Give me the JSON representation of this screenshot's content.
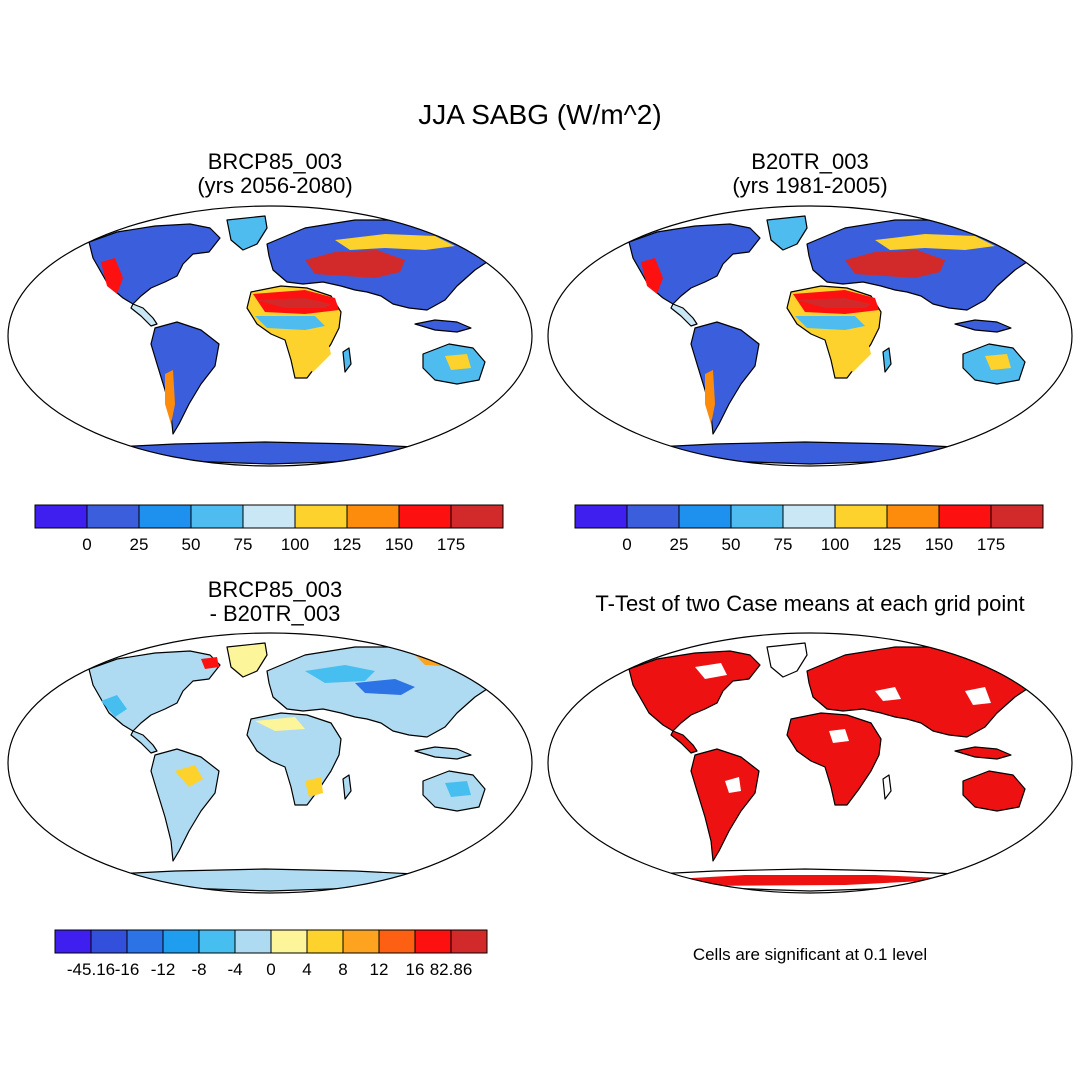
{
  "title": "JJA SABG (W/m^2)",
  "panels": [
    {
      "id": "p1",
      "title_line1": "BRCP85_003",
      "title_line2": "(yrs 2056-2080)",
      "scheme": "abs"
    },
    {
      "id": "p2",
      "title_line1": "B20TR_003",
      "title_line2": "(yrs 1981-2005)",
      "scheme": "abs"
    },
    {
      "id": "p3",
      "title_line1": "BRCP85_003",
      "title_line2": "- B20TR_003",
      "scheme": "diff"
    },
    {
      "id": "p4",
      "title_line1": "T-Test of two Case means at each grid point",
      "title_line2": "",
      "scheme": "sig"
    }
  ],
  "colorbars": {
    "absolute": {
      "colors": [
        "#3e1fef",
        "#3b5fdc",
        "#1e90ee",
        "#4fbcef",
        "#c9e7f5",
        "#fdd22c",
        "#fd8c0d",
        "#fd1010",
        "#d22a2a"
      ],
      "labels": [
        "0",
        "25",
        "50",
        "75",
        "100",
        "125",
        "150",
        "175"
      ]
    },
    "difference": {
      "colors": [
        "#3e1fef",
        "#3350dc",
        "#2c73e6",
        "#1f9ef0",
        "#46bff0",
        "#aedbf1",
        "#fdf59a",
        "#fdd22c",
        "#fda31f",
        "#fd6012",
        "#fd1010",
        "#d22a2a"
      ],
      "labels": [
        "-45.16",
        "-16",
        "-12",
        "-8",
        "-4",
        "0",
        "4",
        "8",
        "12",
        "16",
        "82.86"
      ]
    }
  },
  "significance_color": "#ee1111",
  "note": "Cells are significant at 0.1 level"
}
